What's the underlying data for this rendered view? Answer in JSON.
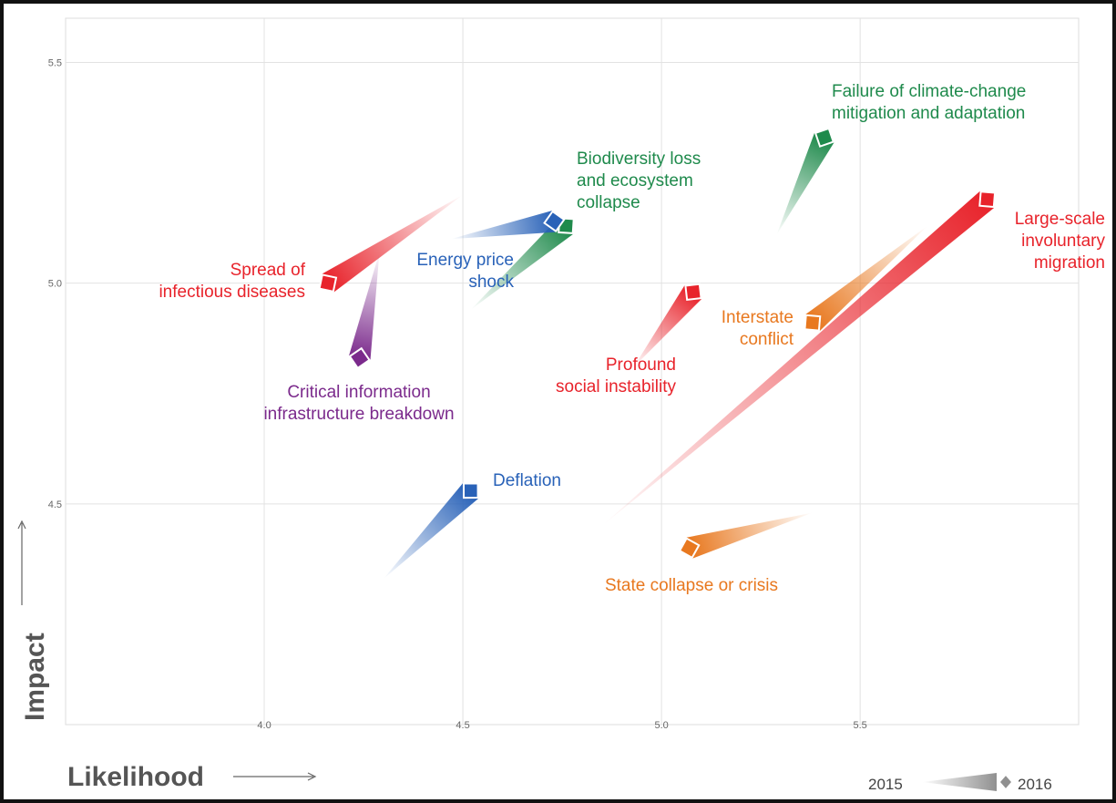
{
  "chart_data": {
    "type": "scatter",
    "xlabel": "Likelihood",
    "ylabel": "Impact",
    "xlim": [
      3.5,
      6.05
    ],
    "ylim": [
      4.0,
      5.6
    ],
    "x_ticks": [
      "4.0",
      "4.5",
      "5.0",
      "5.5"
    ],
    "y_ticks": [
      "4.5",
      "5.0",
      "5.5"
    ],
    "grid": true,
    "legend": {
      "from_label": "2015",
      "to_label": "2016",
      "placement": "bottom-right"
    },
    "series": [
      {
        "name": "Failure of climate-change mitigation and adaptation",
        "label_lines": [
          "Failure of climate-change",
          "mitigation and adaptation"
        ],
        "color": "#1f8a4c",
        "x2015": 5.29,
        "y2015": 5.11,
        "x2016": 5.41,
        "y2016": 5.33
      },
      {
        "name": "Large-scale involuntary migration",
        "label_lines": [
          "Large-scale",
          "involuntary",
          "migration"
        ],
        "color": "#e8232b",
        "x2015": 4.85,
        "y2015": 4.45,
        "x2016": 5.82,
        "y2016": 5.19
      },
      {
        "name": "Biodiversity loss and ecosystem collapse",
        "label_lines": [
          "Biodiversity loss",
          "and ecosystem",
          "collapse"
        ],
        "color": "#1f8a4c",
        "x2015": 4.52,
        "y2015": 4.94,
        "x2016": 4.76,
        "y2016": 5.13
      },
      {
        "name": "Energy price shock",
        "label_lines": [
          "Energy price",
          "shock"
        ],
        "color": "#2962b8",
        "x2015": 4.47,
        "y2015": 5.1,
        "x2016": 4.73,
        "y2016": 5.14
      },
      {
        "name": "Spread of infectious diseases",
        "label_lines": [
          "Spread of",
          "infectious diseases"
        ],
        "color": "#e8232b",
        "x2015": 4.5,
        "y2015": 5.2,
        "x2016": 4.16,
        "y2016": 5.0
      },
      {
        "name": "Critical information infrastructure breakdown",
        "label_lines": [
          "Critical information",
          "infrastructure breakdown"
        ],
        "color": "#7b2a8c",
        "x2015": 4.29,
        "y2015": 5.07,
        "x2016": 4.24,
        "y2016": 4.83
      },
      {
        "name": "Interstate conflict",
        "label_lines": [
          "Interstate",
          "conflict"
        ],
        "color": "#e8781f",
        "x2015": 5.67,
        "y2015": 5.13,
        "x2016": 5.38,
        "y2016": 4.91
      },
      {
        "name": "Profound social instability",
        "label_lines": [
          "Profound",
          "social instability"
        ],
        "color": "#e8232b",
        "x2015": 4.93,
        "y2015": 4.81,
        "x2016": 5.08,
        "y2016": 4.98
      },
      {
        "name": "Deflation",
        "label_lines": [
          "Deflation"
        ],
        "color": "#2962b8",
        "x2015": 4.3,
        "y2015": 4.33,
        "x2016": 4.52,
        "y2016": 4.53
      },
      {
        "name": "State collapse or crisis",
        "label_lines": [
          "State collapse or crisis"
        ],
        "color": "#e8781f",
        "x2015": 5.38,
        "y2015": 4.48,
        "x2016": 5.07,
        "y2016": 4.4
      }
    ]
  }
}
